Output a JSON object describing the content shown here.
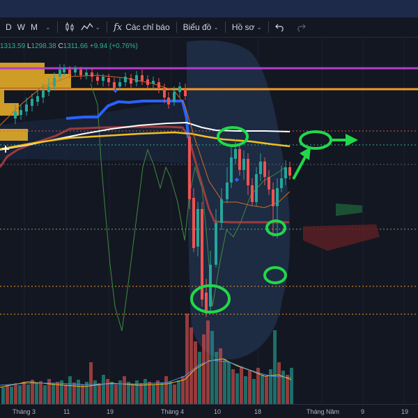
{
  "toolbar": {
    "intervals": [
      "D",
      "W",
      "M"
    ],
    "indicators_label": "Các chỉ báo",
    "chart_label": "Biểu đồ",
    "profile_label": "Hồ sơ"
  },
  "legend": {
    "open": "1313.59",
    "low_label": "L",
    "low": "1298.38",
    "close_label": "C",
    "close": "1311.66",
    "change": "+9.94 (+0.76%)"
  },
  "x_axis": {
    "labels": [
      "Tháng 3",
      "11",
      "19",
      "Tháng 4",
      "10",
      "18",
      "Tháng Năm",
      "9",
      "19"
    ]
  },
  "colors": {
    "up_candle": "#26a69a",
    "down_candle": "#ef5350",
    "annotation": "#21d84a",
    "resistance_orange": "#f59a23",
    "resistance_purple": "#b43ccf",
    "blue_line": "#2962ff",
    "white_line": "#ffffff",
    "yellow_line": "#f2c020"
  }
}
